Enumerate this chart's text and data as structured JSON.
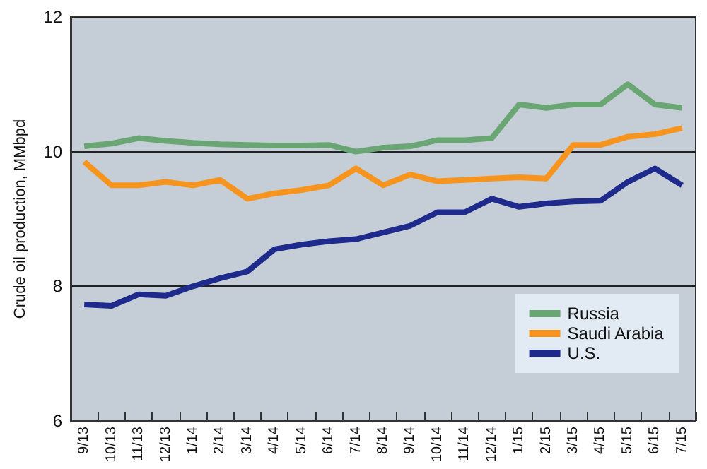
{
  "chart_data": {
    "type": "line",
    "ylabel": "Crude oil production, MMbpd",
    "categories": [
      "9/13",
      "10/13",
      "11/13",
      "12/13",
      "1/14",
      "2/14",
      "3/14",
      "4/14",
      "5/14",
      "6/14",
      "7/14",
      "8/14",
      "9/14",
      "10/14",
      "11/14",
      "12/14",
      "1/15",
      "2/15",
      "3/15",
      "4/15",
      "5/15",
      "6/15",
      "7/15"
    ],
    "series": [
      {
        "name": "Russia",
        "color": "#6aa574",
        "values": [
          10.08,
          10.12,
          10.2,
          10.16,
          10.13,
          10.11,
          10.1,
          10.09,
          10.09,
          10.1,
          10.0,
          10.06,
          10.08,
          10.17,
          10.17,
          10.2,
          10.7,
          10.65,
          10.7,
          10.7,
          11.0,
          10.7,
          10.65
        ]
      },
      {
        "name": "Saudi Arabia",
        "color": "#f7941e",
        "values": [
          9.85,
          9.5,
          9.5,
          9.55,
          9.5,
          9.58,
          9.3,
          9.38,
          9.43,
          9.5,
          9.75,
          9.5,
          9.66,
          9.56,
          9.58,
          9.6,
          9.62,
          9.6,
          10.1,
          10.1,
          10.22,
          10.26,
          10.35
        ]
      },
      {
        "name": "U.S.",
        "color": "#1e2a8c",
        "values": [
          7.73,
          7.71,
          7.88,
          7.86,
          8.0,
          8.12,
          8.22,
          8.55,
          8.62,
          8.67,
          8.7,
          8.8,
          8.9,
          9.1,
          9.1,
          9.3,
          9.18,
          9.23,
          9.26,
          9.27,
          9.55,
          9.75,
          9.5
        ]
      }
    ],
    "ylim": [
      6,
      12
    ],
    "yticks": [
      6,
      8,
      10,
      12
    ],
    "grid": "y",
    "legend": "bottom right",
    "marker": "none",
    "line_style": "solid"
  }
}
